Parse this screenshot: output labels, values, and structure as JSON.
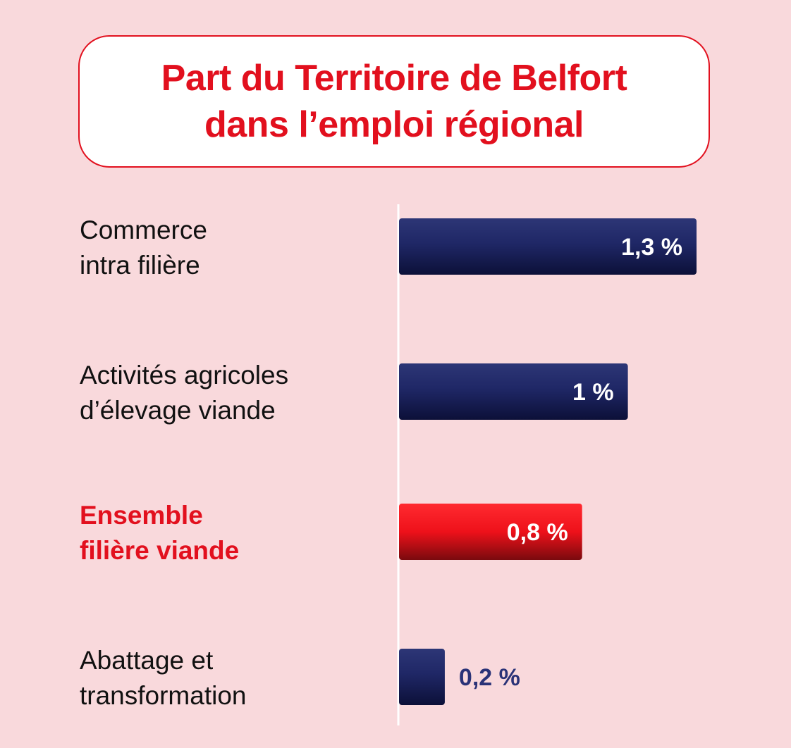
{
  "title": {
    "line1": "Part du Territoire de Belfort",
    "line2": "dans l’emploi régional"
  },
  "colors": {
    "background": "#f9d9dc",
    "accent_red": "#e2101e",
    "bar_navy": "#1c2360",
    "bar_red": "#f0141d",
    "outside_label": "#2a3277"
  },
  "chart_data": {
    "type": "bar",
    "orientation": "horizontal",
    "title": "Part du Territoire de Belfort dans l’emploi régional",
    "unit": "%",
    "categories": [
      [
        "Commerce",
        "intra filière"
      ],
      [
        "Activités agricoles",
        "d’élevage viande"
      ],
      [
        "Ensemble",
        "filière viande"
      ],
      [
        "Abattage et",
        "transformation"
      ]
    ],
    "values": [
      1.3,
      1.0,
      0.8,
      0.2
    ],
    "value_labels": [
      "1,3 %",
      "1 %",
      "0,8 %",
      "0,2 %"
    ],
    "highlight": [
      false,
      false,
      true,
      false
    ],
    "xlim": [
      0,
      1.3
    ],
    "grid": false,
    "legend": "none"
  }
}
